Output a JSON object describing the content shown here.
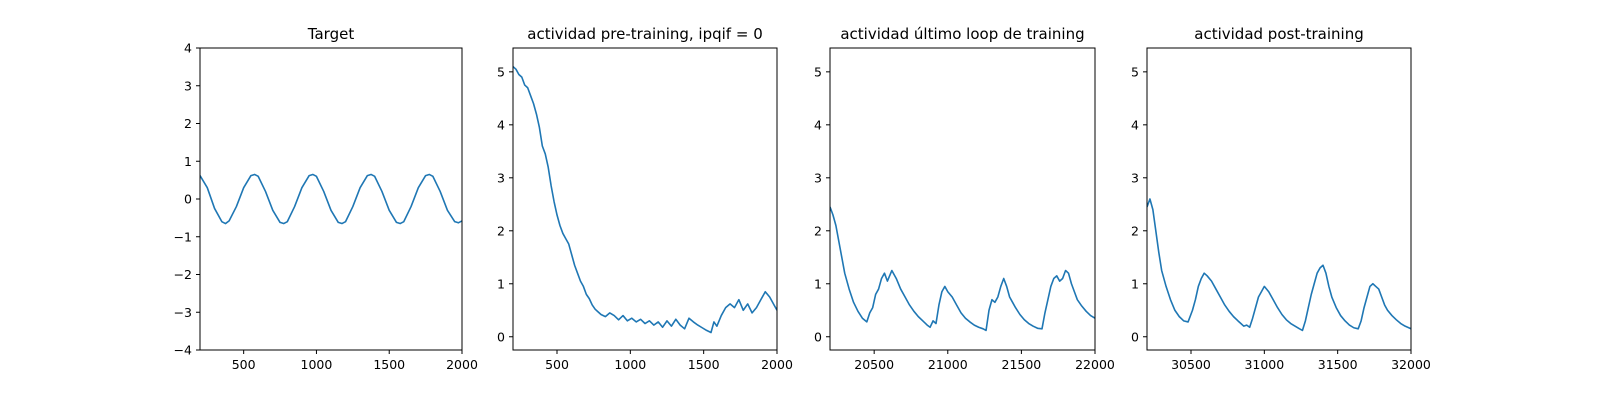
{
  "chart_data": [
    {
      "type": "line",
      "title": "Target",
      "xlabel": "",
      "ylabel": "",
      "xlim": [
        200,
        2000
      ],
      "ylim": [
        -4,
        4
      ],
      "xticks": [
        500,
        1000,
        1500,
        2000
      ],
      "yticks": [
        -4,
        -3,
        -2,
        -1,
        0,
        1,
        2,
        3,
        4
      ],
      "grid": false,
      "color": "#1f77b4",
      "series": [
        {
          "x": [
            200,
            250,
            300,
            350,
            375,
            400,
            450,
            500,
            550,
            575,
            600,
            650,
            700,
            750,
            775,
            800,
            850,
            900,
            950,
            975,
            1000,
            1050,
            1100,
            1150,
            1175,
            1200,
            1250,
            1300,
            1350,
            1375,
            1400,
            1450,
            1500,
            1550,
            1575,
            1600,
            1650,
            1700,
            1750,
            1775,
            1800,
            1850,
            1900,
            1950,
            1975,
            2000
          ],
          "y": [
            0.62,
            0.3,
            -0.25,
            -0.6,
            -0.65,
            -0.58,
            -0.2,
            0.3,
            0.62,
            0.65,
            0.6,
            0.2,
            -0.3,
            -0.62,
            -0.65,
            -0.6,
            -0.2,
            0.3,
            0.62,
            0.65,
            0.6,
            0.2,
            -0.3,
            -0.62,
            -0.65,
            -0.6,
            -0.2,
            0.3,
            0.62,
            0.65,
            0.6,
            0.2,
            -0.3,
            -0.62,
            -0.65,
            -0.6,
            -0.2,
            0.3,
            0.62,
            0.65,
            0.6,
            0.2,
            -0.3,
            -0.6,
            -0.63,
            -0.58
          ]
        }
      ]
    },
    {
      "type": "line",
      "title": "actividad pre-training, ipqif = 0",
      "xlabel": "",
      "ylabel": "",
      "xlim": [
        200,
        2000
      ],
      "ylim": [
        -0.25,
        5.45
      ],
      "xticks": [
        500,
        1000,
        1500,
        2000
      ],
      "yticks": [
        0,
        1,
        2,
        3,
        4,
        5
      ],
      "grid": false,
      "color": "#1f77b4",
      "series": [
        {
          "x": [
            200,
            220,
            240,
            260,
            280,
            300,
            320,
            340,
            360,
            380,
            400,
            420,
            440,
            460,
            480,
            500,
            520,
            540,
            560,
            580,
            600,
            620,
            640,
            660,
            680,
            700,
            720,
            740,
            760,
            780,
            800,
            830,
            860,
            890,
            920,
            950,
            980,
            1010,
            1040,
            1070,
            1100,
            1130,
            1160,
            1190,
            1220,
            1250,
            1280,
            1310,
            1340,
            1370,
            1400,
            1430,
            1460,
            1490,
            1520,
            1550,
            1570,
            1590,
            1620,
            1650,
            1680,
            1710,
            1740,
            1770,
            1800,
            1830,
            1860,
            1890,
            1920,
            1950,
            1980,
            2000
          ],
          "y": [
            5.1,
            5.05,
            4.95,
            4.9,
            4.75,
            4.7,
            4.55,
            4.4,
            4.2,
            3.95,
            3.6,
            3.45,
            3.2,
            2.85,
            2.55,
            2.3,
            2.1,
            1.95,
            1.85,
            1.75,
            1.55,
            1.35,
            1.2,
            1.05,
            0.95,
            0.8,
            0.72,
            0.6,
            0.52,
            0.47,
            0.42,
            0.38,
            0.45,
            0.4,
            0.32,
            0.4,
            0.3,
            0.35,
            0.28,
            0.33,
            0.25,
            0.3,
            0.22,
            0.28,
            0.18,
            0.3,
            0.2,
            0.33,
            0.22,
            0.15,
            0.35,
            0.28,
            0.22,
            0.17,
            0.12,
            0.08,
            0.28,
            0.2,
            0.4,
            0.55,
            0.62,
            0.55,
            0.7,
            0.5,
            0.62,
            0.45,
            0.55,
            0.7,
            0.85,
            0.75,
            0.6,
            0.5
          ]
        }
      ]
    },
    {
      "type": "line",
      "title": "actividad último loop de training",
      "xlabel": "",
      "ylabel": "",
      "xlim": [
        20200,
        22000
      ],
      "ylim": [
        -0.25,
        5.45
      ],
      "xticks": [
        20500,
        21000,
        21500,
        22000
      ],
      "yticks": [
        0,
        1,
        2,
        3,
        4,
        5
      ],
      "grid": false,
      "color": "#1f77b4",
      "series": [
        {
          "x": [
            20200,
            20220,
            20240,
            20260,
            20280,
            20300,
            20330,
            20360,
            20390,
            20420,
            20450,
            20470,
            20490,
            20510,
            20530,
            20550,
            20570,
            20590,
            20620,
            20650,
            20680,
            20710,
            20740,
            20770,
            20800,
            20830,
            20860,
            20880,
            20900,
            20920,
            20940,
            20960,
            20980,
            21000,
            21030,
            21060,
            21090,
            21120,
            21150,
            21180,
            21210,
            21240,
            21260,
            21280,
            21300,
            21320,
            21340,
            21360,
            21380,
            21400,
            21420,
            21440,
            21460,
            21490,
            21520,
            21550,
            21580,
            21610,
            21640,
            21660,
            21680,
            21700,
            21720,
            21740,
            21760,
            21780,
            21800,
            21820,
            21840,
            21860,
            21880,
            21910,
            21940,
            21970,
            22000
          ],
          "y": [
            2.45,
            2.3,
            2.1,
            1.8,
            1.5,
            1.2,
            0.9,
            0.65,
            0.48,
            0.35,
            0.28,
            0.45,
            0.55,
            0.8,
            0.9,
            1.1,
            1.2,
            1.05,
            1.25,
            1.1,
            0.9,
            0.75,
            0.6,
            0.48,
            0.38,
            0.3,
            0.22,
            0.18,
            0.3,
            0.25,
            0.6,
            0.85,
            0.95,
            0.85,
            0.75,
            0.6,
            0.45,
            0.35,
            0.28,
            0.22,
            0.18,
            0.15,
            0.12,
            0.5,
            0.7,
            0.65,
            0.75,
            0.95,
            1.1,
            0.95,
            0.75,
            0.65,
            0.55,
            0.42,
            0.32,
            0.25,
            0.2,
            0.16,
            0.15,
            0.45,
            0.7,
            0.95,
            1.1,
            1.15,
            1.05,
            1.1,
            1.25,
            1.2,
            1.0,
            0.85,
            0.7,
            0.58,
            0.48,
            0.4,
            0.35
          ]
        }
      ]
    },
    {
      "type": "line",
      "title": "actividad post-training",
      "xlabel": "",
      "ylabel": "",
      "xlim": [
        30200,
        32000
      ],
      "ylim": [
        -0.25,
        5.45
      ],
      "xticks": [
        30500,
        31000,
        31500,
        32000
      ],
      "yticks": [
        0,
        1,
        2,
        3,
        4,
        5
      ],
      "grid": false,
      "color": "#1f77b4",
      "series": [
        {
          "x": [
            30200,
            30220,
            30240,
            30260,
            30280,
            30300,
            30330,
            30360,
            30390,
            30420,
            30450,
            30480,
            30510,
            30530,
            30550,
            30570,
            30590,
            30610,
            30640,
            30670,
            30700,
            30730,
            30760,
            30790,
            30820,
            30840,
            30860,
            30880,
            30900,
            30920,
            30940,
            30960,
            30980,
            31000,
            31030,
            31060,
            31090,
            31120,
            31150,
            31180,
            31210,
            31240,
            31260,
            31280,
            31300,
            31320,
            31340,
            31360,
            31380,
            31400,
            31420,
            31440,
            31460,
            31490,
            31520,
            31550,
            31580,
            31610,
            31640,
            31660,
            31680,
            31700,
            31720,
            31740,
            31760,
            31780,
            31800,
            31820,
            31840,
            31870,
            31900,
            31930,
            31960,
            32000
          ],
          "y": [
            2.45,
            2.6,
            2.4,
            2.0,
            1.6,
            1.25,
            0.95,
            0.7,
            0.5,
            0.38,
            0.3,
            0.28,
            0.5,
            0.7,
            0.95,
            1.1,
            1.2,
            1.15,
            1.05,
            0.9,
            0.75,
            0.6,
            0.48,
            0.38,
            0.3,
            0.25,
            0.2,
            0.22,
            0.18,
            0.35,
            0.55,
            0.75,
            0.85,
            0.95,
            0.85,
            0.7,
            0.55,
            0.42,
            0.32,
            0.25,
            0.2,
            0.15,
            0.12,
            0.3,
            0.55,
            0.8,
            1.0,
            1.2,
            1.3,
            1.35,
            1.2,
            0.95,
            0.75,
            0.55,
            0.4,
            0.3,
            0.22,
            0.17,
            0.15,
            0.3,
            0.55,
            0.75,
            0.95,
            1.0,
            0.95,
            0.9,
            0.75,
            0.6,
            0.5,
            0.4,
            0.32,
            0.25,
            0.2,
            0.15
          ]
        }
      ]
    }
  ]
}
